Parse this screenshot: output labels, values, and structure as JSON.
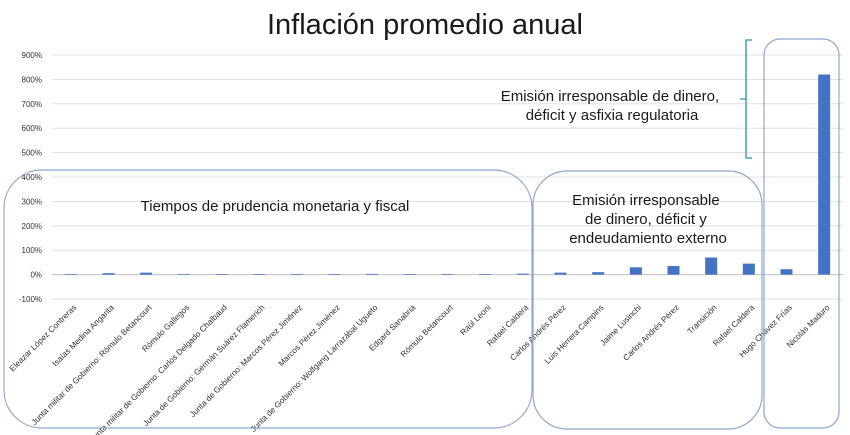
{
  "chart_data": {
    "type": "bar",
    "title": "Inflación promedio anual",
    "xlabel": "",
    "ylabel": "",
    "ylim": [
      -100,
      900
    ],
    "yticks": [
      "-100%",
      "0%",
      "100%",
      "200%",
      "300%",
      "400%",
      "500%",
      "600%",
      "700%",
      "800%",
      "900%"
    ],
    "grid": true,
    "bar_color": "#4472c4",
    "categories": [
      "Eleazar López Contreras",
      "Isaías Medina Angarita",
      "Junta militar de Gobierno: Rómulo Betancourt",
      "Rómulo Gallegos",
      "Junta militar de Gobierno: Carlos Delgado Chalbaud",
      "Junta de Gobierno: Germán Suárez Flamerich",
      "Junta de Gobierno: Marcos Pérez Jiménez",
      "Marcos Pérez Jiménez",
      "Junta de Gobierno: Wolfgang Larrazábal Ugueto",
      "Edgard Sanabria",
      "Rómulo Betancourt",
      "Raúl Leoni",
      "Rafael Caldera",
      "Carlos Andrés Pérez",
      "Luis Herrera Campins",
      "Jaime Lusinchi",
      "Carlos Andrés Pérez",
      "Transición",
      "Rafael Caldera",
      "Hugo Chávez Frías",
      "Nicolás Maduro"
    ],
    "values": [
      0,
      6,
      8,
      1,
      0,
      1,
      2,
      1,
      3,
      1,
      1,
      2,
      4,
      8,
      10,
      30,
      35,
      70,
      45,
      22,
      820
    ],
    "annotations": [
      "Tiempos de prudencia monetaria y fiscal",
      [
        "Emisión irresponsable",
        "de dinero, déficit y",
        "endeudamiento externo"
      ],
      [
        "Emisión irresponsable de dinero,",
        "déficit y asfixia regulatoria"
      ]
    ]
  }
}
